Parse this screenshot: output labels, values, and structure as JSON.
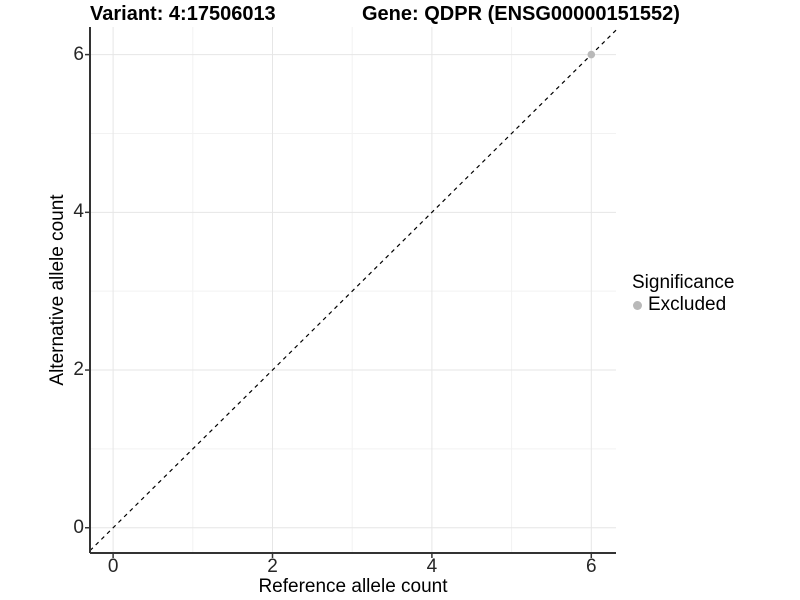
{
  "chart_data": {
    "type": "scatter",
    "titles": {
      "left": "Variant: 4:17506013",
      "right": "Gene: QDPR (ENSG00000151552)"
    },
    "xlabel": "Reference allele count",
    "ylabel": "Alternative allele count",
    "xlim": [
      -0.29,
      6.31
    ],
    "ylim": [
      -0.32,
      6.35
    ],
    "x_ticks": [
      0,
      2,
      4,
      6
    ],
    "y_ticks": [
      0,
      2,
      4,
      6
    ],
    "x_minor_grid": [
      1,
      3,
      5
    ],
    "y_minor_grid": [
      1,
      3,
      5
    ],
    "grid": "major_and_minor",
    "reference_line": {
      "kind": "identity y=x",
      "style": "dashed",
      "color": "#000000"
    },
    "series": [
      {
        "name": "Excluded",
        "color": "#b9b9b9",
        "points": [
          {
            "x": 6,
            "y": 6
          }
        ]
      }
    ],
    "legend": {
      "title": "Significance",
      "position": "right",
      "items": [
        {
          "label": "Excluded",
          "color": "#b9b9b9"
        }
      ]
    },
    "style": {
      "axis_line_color": "#333333",
      "tick_color": "#333333",
      "major_grid_color": "#e6e6e6",
      "minor_grid_color": "#f2f2f2",
      "point_radius": 3.8
    }
  }
}
